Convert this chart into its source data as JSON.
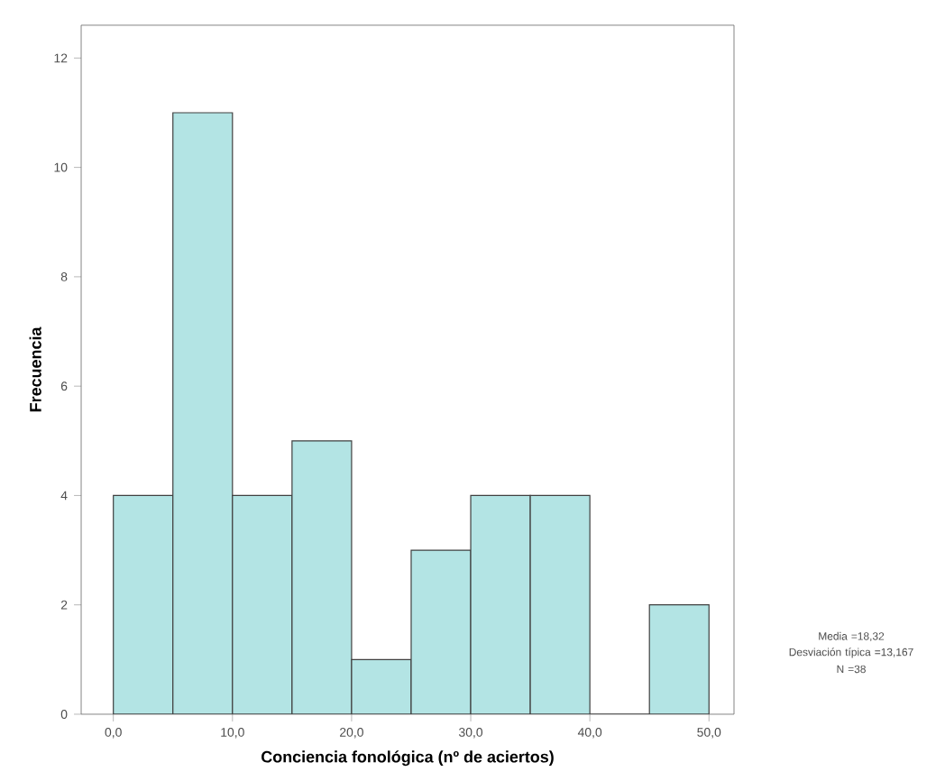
{
  "chart_data": {
    "type": "histogram",
    "xlabel": "Conciencia fonológica (nº de aciertos)",
    "ylabel": "Frecuencia",
    "bins": [
      0,
      5,
      10,
      15,
      20,
      25,
      30,
      35,
      40,
      45,
      50
    ],
    "values": [
      4,
      11,
      4,
      5,
      1,
      3,
      4,
      4,
      0,
      2
    ],
    "color": "#b3e4e4",
    "xlim": [
      -2.7,
      52.1
    ],
    "ylim": [
      0,
      12.6
    ],
    "xticks": [
      {
        "value": 0,
        "label": "0,0"
      },
      {
        "value": 10,
        "label": "10,0"
      },
      {
        "value": 20,
        "label": "20,0"
      },
      {
        "value": 30,
        "label": "30,0"
      },
      {
        "value": 40,
        "label": "40,0"
      },
      {
        "value": 50,
        "label": "50,0"
      }
    ],
    "yticks": [
      0,
      2,
      4,
      6,
      8,
      10,
      12
    ],
    "annotations": [
      "Media =18,32",
      "Desviación típica =13,167",
      "N =38"
    ]
  }
}
